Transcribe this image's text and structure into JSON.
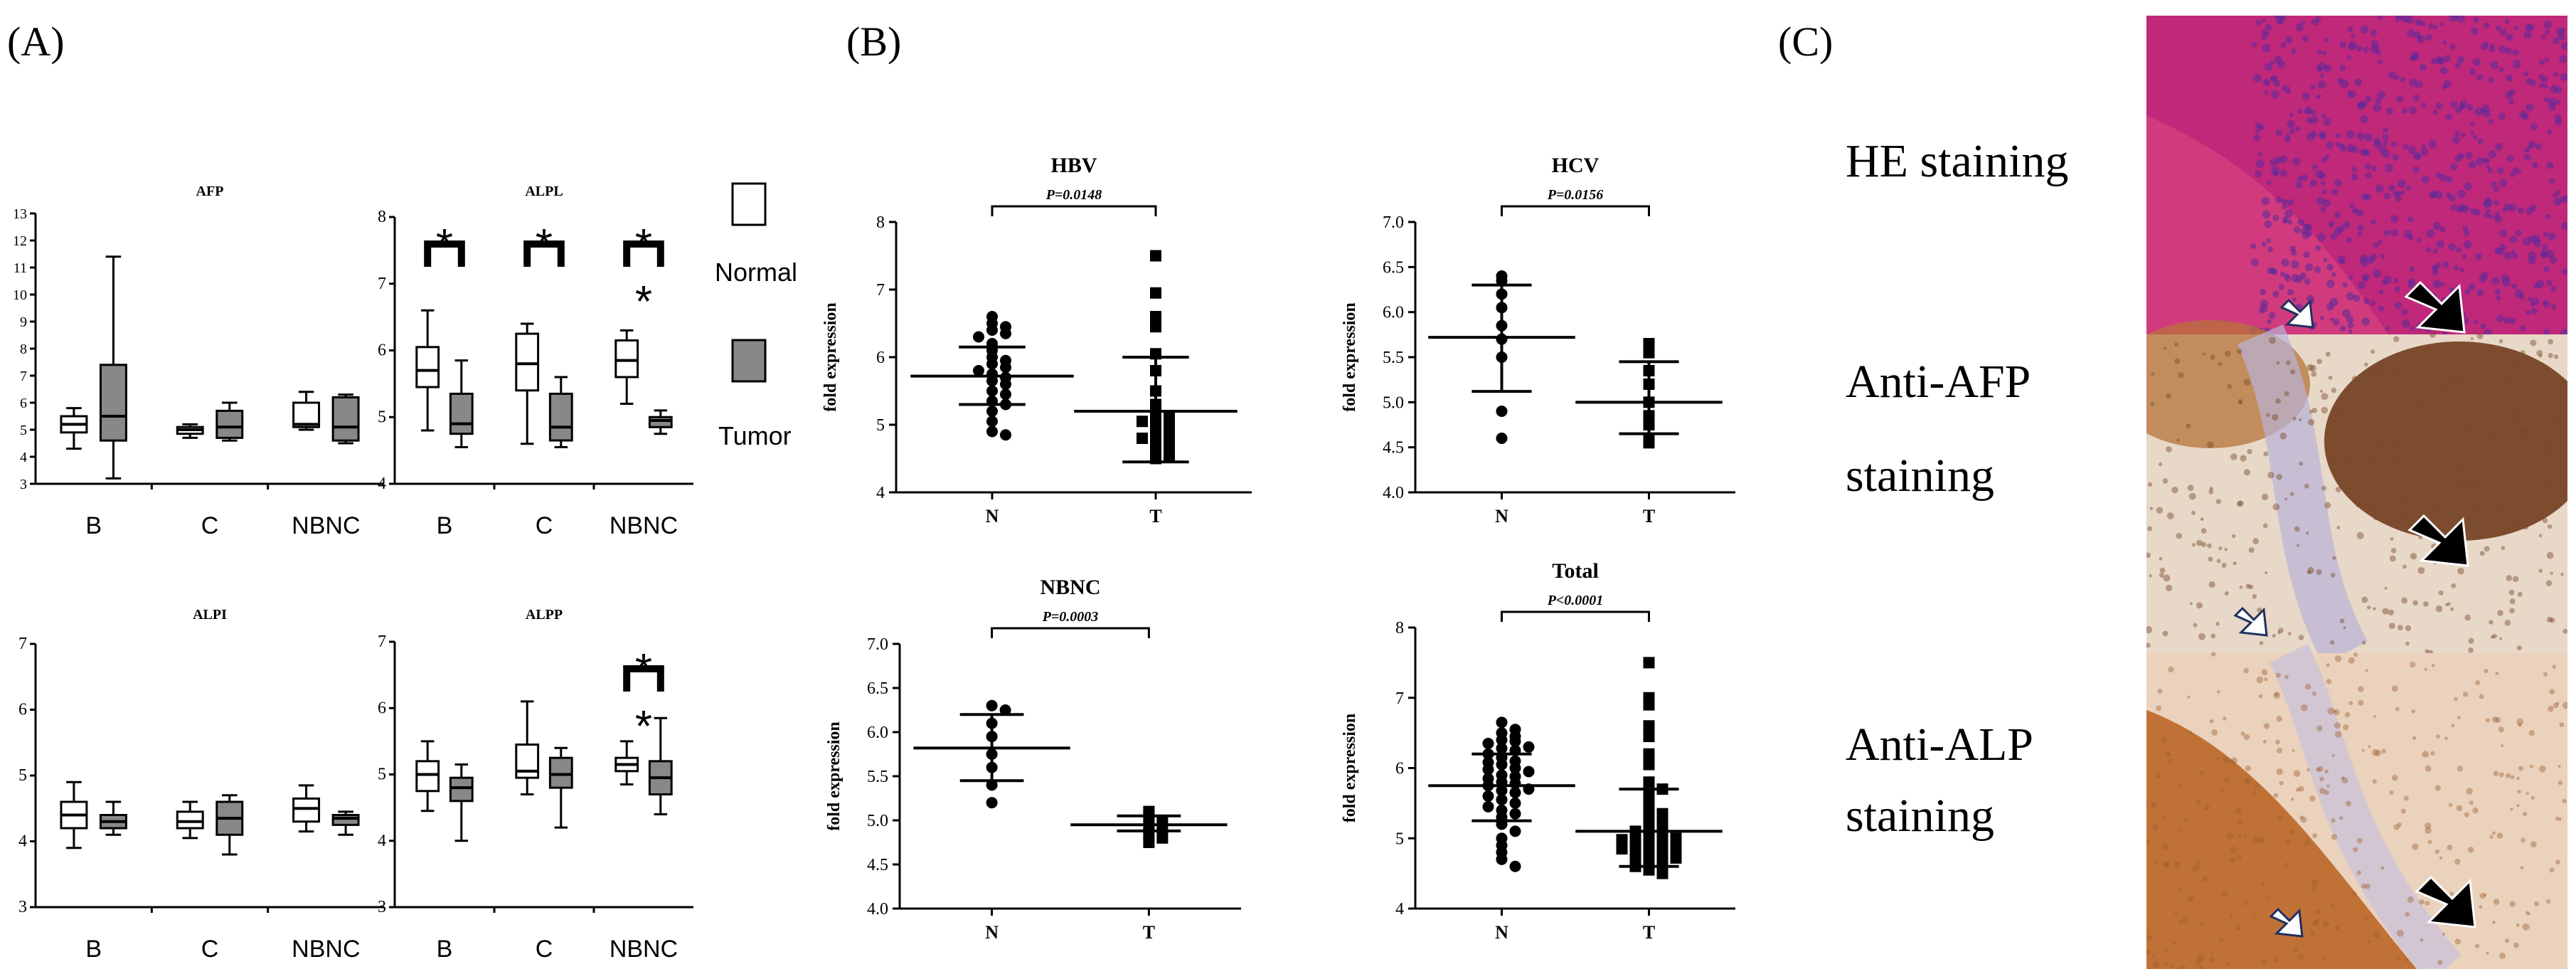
{
  "panel_labels": {
    "a": "(A)",
    "b": "(B)",
    "c": "(C)"
  },
  "legend": {
    "normal": "Normal",
    "tumor": "Tumor",
    "normal_color": "#ffffff",
    "tumor_color": "#888888"
  },
  "stain_labels": {
    "he": "HE staining",
    "afp_line1": "Anti-AFP",
    "afp_line2": "staining",
    "alp_line1": "Anti-ALP",
    "alp_line2": "staining"
  },
  "micrographs": [
    {
      "name": "HE",
      "base_color": "#c0287a",
      "accent_color": "#5a2a9a"
    },
    {
      "name": "Anti-AFP",
      "base_color": "#e8d8c8",
      "accent_color": "#6a3414"
    },
    {
      "name": "Anti-ALP",
      "base_color": "#ead2bc",
      "accent_color": "#b8621e"
    }
  ],
  "chart_data": [
    {
      "id": "afp",
      "type": "box",
      "title": "AFP",
      "ylim": [
        3,
        13
      ],
      "yticks": [
        "3",
        "4",
        "5",
        "6",
        "7",
        "8",
        "9",
        "10",
        "11",
        "12",
        "13"
      ],
      "categories": [
        "B",
        "C",
        "NBNC"
      ],
      "boxes": [
        {
          "group": "B",
          "series": "Normal",
          "min": 4.3,
          "q1": 4.9,
          "median": 5.2,
          "q3": 5.5,
          "max": 5.8
        },
        {
          "group": "B",
          "series": "Tumor",
          "min": 3.2,
          "q1": 4.6,
          "median": 5.5,
          "q3": 7.4,
          "max": 11.4
        },
        {
          "group": "C",
          "series": "Normal",
          "min": 4.7,
          "q1": 4.85,
          "median": 5.0,
          "q3": 5.1,
          "max": 5.2
        },
        {
          "group": "C",
          "series": "Tumor",
          "min": 4.6,
          "q1": 4.7,
          "median": 5.1,
          "q3": 5.7,
          "max": 6.0
        },
        {
          "group": "NBNC",
          "series": "Normal",
          "min": 5.0,
          "q1": 5.1,
          "median": 5.2,
          "q3": 6.0,
          "max": 6.4
        },
        {
          "group": "NBNC",
          "series": "Tumor",
          "min": 4.5,
          "q1": 4.6,
          "median": 5.1,
          "q3": 6.2,
          "max": 6.3
        }
      ],
      "significance": []
    },
    {
      "id": "alpl",
      "type": "box",
      "title": "ALPL",
      "ylim": [
        4,
        8
      ],
      "yticks": [
        "4",
        "5",
        "6",
        "7",
        "8"
      ],
      "categories": [
        "B",
        "C",
        "NBNC"
      ],
      "boxes": [
        {
          "group": "B",
          "series": "Normal",
          "min": 4.8,
          "q1": 5.45,
          "median": 5.7,
          "q3": 6.05,
          "max": 6.6
        },
        {
          "group": "B",
          "series": "Tumor",
          "min": 4.55,
          "q1": 4.75,
          "median": 4.9,
          "q3": 5.35,
          "max": 5.85
        },
        {
          "group": "C",
          "series": "Normal",
          "min": 4.6,
          "q1": 5.4,
          "median": 5.8,
          "q3": 6.25,
          "max": 6.4
        },
        {
          "group": "C",
          "series": "Tumor",
          "min": 4.55,
          "q1": 4.65,
          "median": 4.85,
          "q3": 5.35,
          "max": 5.6
        },
        {
          "group": "NBNC",
          "series": "Normal",
          "min": 5.2,
          "q1": 5.6,
          "median": 5.85,
          "q3": 6.15,
          "max": 6.3
        },
        {
          "group": "NBNC",
          "series": "Tumor",
          "min": 4.75,
          "q1": 4.85,
          "median": 4.95,
          "q3": 5.0,
          "max": 5.1
        }
      ],
      "significance": [
        {
          "group": "B",
          "label": "*",
          "inner": false
        },
        {
          "group": "C",
          "label": "*",
          "inner": false
        },
        {
          "group": "NBNC",
          "label": "*",
          "inner": false
        },
        {
          "group": "NBNC",
          "label": "*",
          "inner": true
        }
      ]
    },
    {
      "id": "alpi",
      "type": "box",
      "title": "ALPI",
      "ylim": [
        3,
        7
      ],
      "yticks": [
        "3",
        "4",
        "5",
        "6",
        "7"
      ],
      "categories": [
        "B",
        "C",
        "NBNC"
      ],
      "boxes": [
        {
          "group": "B",
          "series": "Normal",
          "min": 3.9,
          "q1": 4.2,
          "median": 4.4,
          "q3": 4.6,
          "max": 4.9
        },
        {
          "group": "B",
          "series": "Tumor",
          "min": 4.1,
          "q1": 4.2,
          "median": 4.3,
          "q3": 4.4,
          "max": 4.6
        },
        {
          "group": "C",
          "series": "Normal",
          "min": 4.05,
          "q1": 4.2,
          "median": 4.3,
          "q3": 4.45,
          "max": 4.6
        },
        {
          "group": "C",
          "series": "Tumor",
          "min": 3.8,
          "q1": 4.1,
          "median": 4.35,
          "q3": 4.6,
          "max": 4.7
        },
        {
          "group": "NBNC",
          "series": "Normal",
          "min": 4.15,
          "q1": 4.3,
          "median": 4.5,
          "q3": 4.65,
          "max": 4.85
        },
        {
          "group": "NBNC",
          "series": "Tumor",
          "min": 4.1,
          "q1": 4.25,
          "median": 4.35,
          "q3": 4.4,
          "max": 4.45
        }
      ],
      "significance": []
    },
    {
      "id": "alpp",
      "type": "box",
      "title": "ALPP",
      "ylim": [
        3,
        7
      ],
      "yticks": [
        "3",
        "4",
        "5",
        "6",
        "7"
      ],
      "categories": [
        "B",
        "C",
        "NBNC"
      ],
      "boxes": [
        {
          "group": "B",
          "series": "Normal",
          "min": 4.45,
          "q1": 4.75,
          "median": 5.0,
          "q3": 5.2,
          "max": 5.5
        },
        {
          "group": "B",
          "series": "Tumor",
          "min": 4.0,
          "q1": 4.6,
          "median": 4.8,
          "q3": 4.95,
          "max": 5.15
        },
        {
          "group": "C",
          "series": "Normal",
          "min": 4.7,
          "q1": 4.95,
          "median": 5.05,
          "q3": 5.45,
          "max": 6.1
        },
        {
          "group": "C",
          "series": "Tumor",
          "min": 4.2,
          "q1": 4.8,
          "median": 5.0,
          "q3": 5.25,
          "max": 5.4
        },
        {
          "group": "NBNC",
          "series": "Normal",
          "min": 4.85,
          "q1": 5.05,
          "median": 5.15,
          "q3": 5.25,
          "max": 5.5
        },
        {
          "group": "NBNC",
          "series": "Tumor",
          "min": 4.4,
          "q1": 4.7,
          "median": 4.95,
          "q3": 5.2,
          "max": 5.85
        }
      ],
      "significance": [
        {
          "group": "NBNC",
          "label": "*",
          "inner": false
        },
        {
          "group": "NBNC",
          "label": "*",
          "inner": true
        }
      ]
    },
    {
      "id": "hbv",
      "type": "scatter",
      "title": "HBV",
      "ylabel": "fold expression",
      "ylim": [
        4,
        8
      ],
      "yticks": [
        "4",
        "5",
        "6",
        "7",
        "8"
      ],
      "categories": [
        "N",
        "T"
      ],
      "p_label": "P=0.0148",
      "groups": [
        {
          "name": "N",
          "marker": "circle",
          "mean": 5.72,
          "sd_low": 5.3,
          "sd_high": 6.15,
          "points": [
            6.6,
            6.5,
            6.45,
            6.4,
            6.35,
            6.3,
            6.2,
            6.1,
            6.0,
            5.95,
            5.9,
            5.85,
            5.8,
            5.75,
            5.7,
            5.65,
            5.6,
            5.5,
            5.45,
            5.35,
            5.3,
            5.2,
            5.05,
            4.9,
            4.85
          ]
        },
        {
          "name": "T",
          "marker": "square",
          "mean": 5.2,
          "sd_low": 4.45,
          "sd_high": 6.0,
          "points": [
            7.5,
            6.95,
            6.6,
            6.45,
            6.05,
            5.8,
            5.5,
            5.3,
            5.2,
            5.15,
            5.1,
            5.05,
            5.0,
            4.95,
            4.9,
            4.85,
            4.8,
            4.75,
            4.7,
            4.6,
            4.55,
            4.5
          ]
        }
      ]
    },
    {
      "id": "hcv",
      "type": "scatter",
      "title": "HCV",
      "ylabel": "fold expression",
      "ylim": [
        4.0,
        7.0
      ],
      "yticks": [
        "4.0",
        "4.5",
        "5.0",
        "5.5",
        "6.0",
        "6.5",
        "7.0"
      ],
      "categories": [
        "N",
        "T"
      ],
      "p_label": "P=0.0156",
      "groups": [
        {
          "name": "N",
          "marker": "circle",
          "mean": 5.72,
          "sd_low": 5.12,
          "sd_high": 6.3,
          "points": [
            6.4,
            6.35,
            6.2,
            6.05,
            5.85,
            5.7,
            5.5,
            4.9,
            4.6
          ]
        },
        {
          "name": "T",
          "marker": "square",
          "mean": 5.0,
          "sd_low": 4.65,
          "sd_high": 5.45,
          "points": [
            5.65,
            5.55,
            5.35,
            5.2,
            5.0,
            4.85,
            4.75,
            4.6,
            4.55
          ]
        }
      ]
    },
    {
      "id": "nbnc",
      "type": "scatter",
      "title": "NBNC",
      "ylabel": "fold expression",
      "ylim": [
        4.0,
        7.0
      ],
      "yticks": [
        "4.0",
        "4.5",
        "5.0",
        "5.5",
        "6.0",
        "6.5",
        "7.0"
      ],
      "categories": [
        "N",
        "T"
      ],
      "p_label": "P=0.0003",
      "groups": [
        {
          "name": "N",
          "marker": "circle",
          "mean": 5.82,
          "sd_low": 5.45,
          "sd_high": 6.2,
          "points": [
            6.3,
            6.25,
            6.1,
            5.95,
            5.75,
            5.6,
            5.4,
            5.2
          ]
        },
        {
          "name": "T",
          "marker": "square",
          "mean": 4.95,
          "sd_low": 4.88,
          "sd_high": 5.05,
          "points": [
            5.1,
            5.05,
            5.0,
            4.95,
            4.9,
            4.85,
            4.8,
            4.75
          ]
        }
      ]
    },
    {
      "id": "total",
      "type": "scatter",
      "title": "Total",
      "ylabel": "fold expression",
      "ylim": [
        4,
        8
      ],
      "yticks": [
        "4",
        "5",
        "6",
        "7",
        "8"
      ],
      "categories": [
        "N",
        "T"
      ],
      "p_label": "P<0.0001",
      "groups": [
        {
          "name": "N",
          "marker": "circle",
          "mean": 5.75,
          "sd_low": 5.25,
          "sd_high": 6.2,
          "points": [
            6.65,
            6.55,
            6.5,
            6.45,
            6.4,
            6.38,
            6.35,
            6.3,
            6.28,
            6.25,
            6.2,
            6.15,
            6.1,
            6.08,
            6.05,
            6.0,
            5.98,
            5.95,
            5.9,
            5.88,
            5.85,
            5.8,
            5.78,
            5.75,
            5.7,
            5.68,
            5.65,
            5.6,
            5.55,
            5.5,
            5.45,
            5.4,
            5.35,
            5.3,
            5.2,
            5.1,
            5.0,
            4.9,
            4.8,
            4.7,
            4.6
          ]
        },
        {
          "name": "T",
          "marker": "square",
          "mean": 5.1,
          "sd_low": 4.6,
          "sd_high": 5.7,
          "points": [
            7.5,
            7.0,
            6.9,
            6.6,
            6.45,
            6.2,
            6.05,
            5.8,
            5.7,
            5.6,
            5.5,
            5.4,
            5.35,
            5.3,
            5.25,
            5.2,
            5.15,
            5.1,
            5.08,
            5.05,
            5.02,
            5.0,
            4.98,
            4.95,
            4.92,
            4.9,
            4.88,
            4.85,
            4.8,
            4.78,
            4.75,
            4.72,
            4.7,
            4.65,
            4.6,
            4.55,
            4.5
          ]
        }
      ]
    }
  ]
}
